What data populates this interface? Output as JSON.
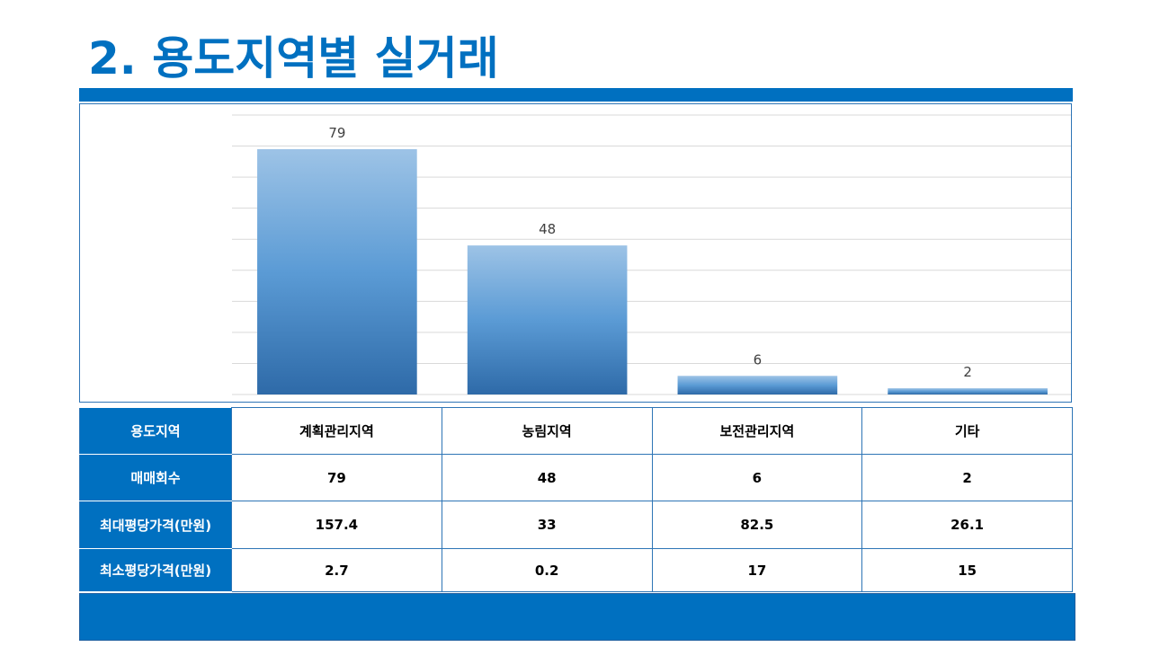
{
  "page": {
    "title": "2. 용도지역별 실거래",
    "accent_color": "#0070c0"
  },
  "chart_data": {
    "type": "bar",
    "categories": [
      "계획관리지역",
      "농림지역",
      "보전관리지역",
      "기타"
    ],
    "values": [
      79,
      48,
      6,
      2
    ],
    "ylim": [
      0,
      90
    ],
    "grid": true,
    "bar_gradient": [
      "#9dc3e6",
      "#5b9bd5",
      "#2e6aa8"
    ]
  },
  "table": {
    "rows": [
      {
        "header": "용도지역",
        "cells": [
          "계획관리지역",
          "농림지역",
          "보전관리지역",
          "기타"
        ]
      },
      {
        "header": "매매회수",
        "cells": [
          "79",
          "48",
          "6",
          "2"
        ]
      },
      {
        "header": "최대평당가격(만원)",
        "cells": [
          "157.4",
          "33",
          "82.5",
          "26.1"
        ]
      },
      {
        "header": "최소평당가격(만원)",
        "cells": [
          "2.7",
          "0.2",
          "17",
          "15"
        ]
      }
    ]
  }
}
